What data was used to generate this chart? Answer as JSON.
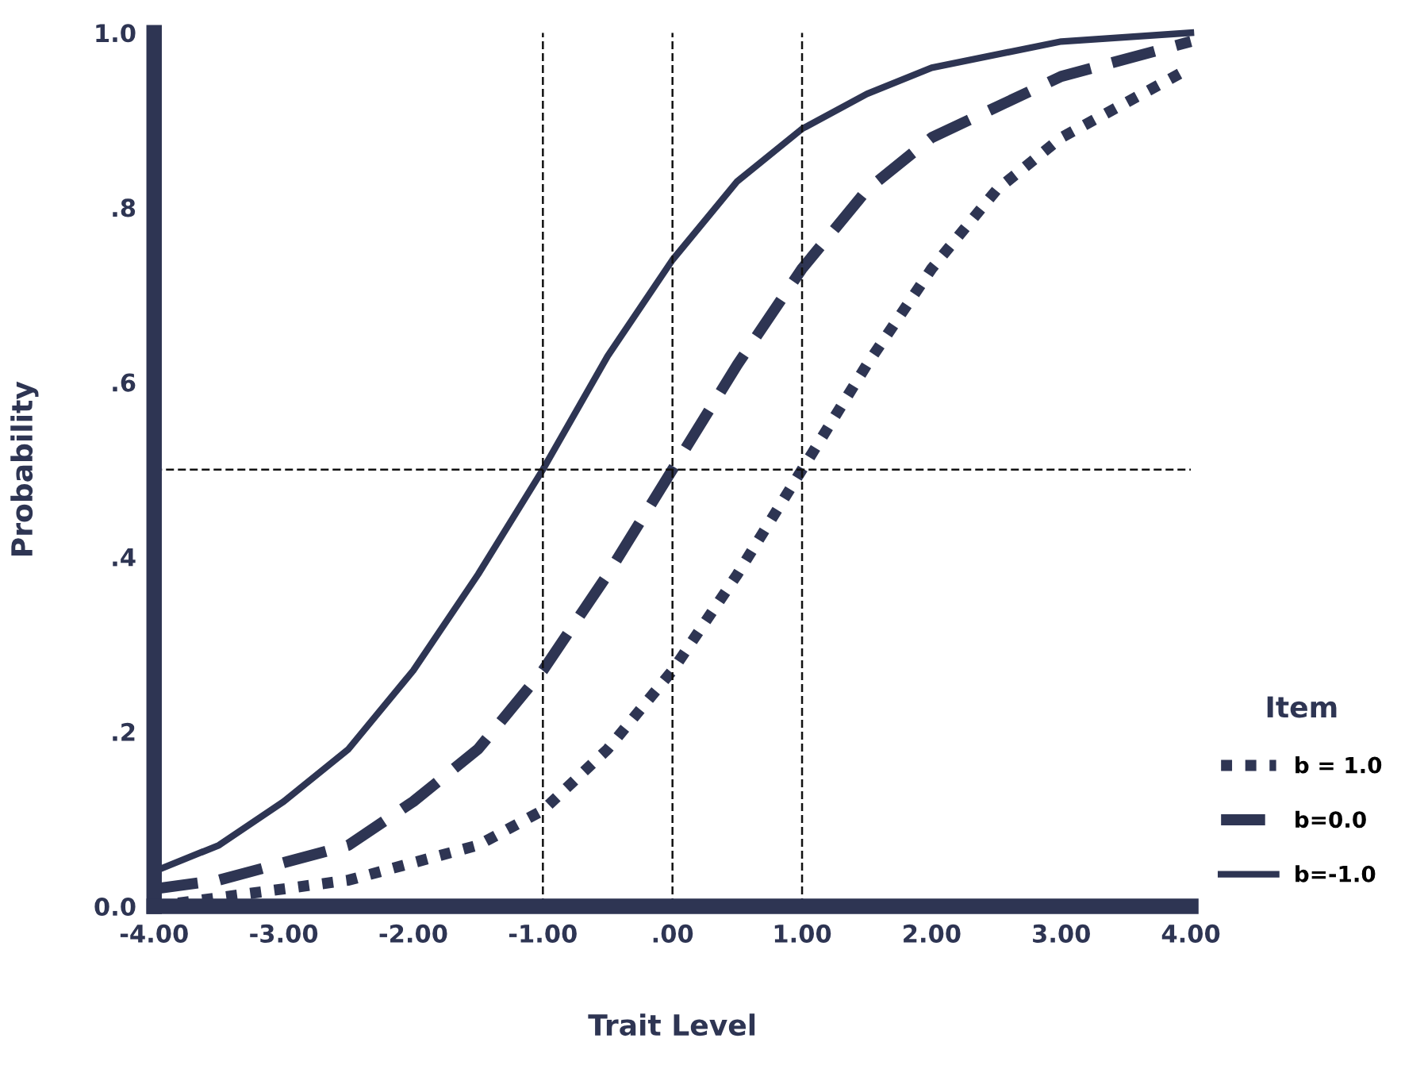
{
  "chart_data": {
    "type": "line",
    "xlabel": "Trait Level",
    "ylabel": "Probability",
    "legend_title": "Item",
    "xlim": [
      -4,
      4
    ],
    "xticks": [
      {
        "value": -4,
        "label": "-4.00"
      },
      {
        "value": -3,
        "label": "-3.00"
      },
      {
        "value": -2,
        "label": "-2.00"
      },
      {
        "value": -1,
        "label": "-1.00"
      },
      {
        "value": 0,
        "label": ".00"
      },
      {
        "value": 1,
        "label": "1.00"
      },
      {
        "value": 2,
        "label": "2.00"
      },
      {
        "value": 3,
        "label": "3.00"
      },
      {
        "value": 4,
        "label": "4.00"
      }
    ],
    "ylim": [
      0,
      1
    ],
    "yticks": [
      {
        "value": 0,
        "label": "0.0"
      },
      {
        "value": 0.2,
        "label": ".2"
      },
      {
        "value": 0.4,
        "label": ".4"
      },
      {
        "value": 0.6,
        "label": ".6"
      },
      {
        "value": 0.8,
        "label": ".8"
      },
      {
        "value": 1,
        "label": "1.0"
      }
    ],
    "grid": false,
    "legend": "right",
    "marker": "none",
    "ref_lines": [
      {
        "axis": "x",
        "value": -1,
        "line_style": "dashed",
        "color": "#111111"
      },
      {
        "axis": "x",
        "value": 0,
        "line_style": "dashed",
        "color": "#111111"
      },
      {
        "axis": "x",
        "value": 1,
        "line_style": "dashed",
        "color": "#111111"
      },
      {
        "axis": "y",
        "value": 0.5,
        "line_style": "dashed",
        "color": "#111111"
      }
    ],
    "series": [
      {
        "name": "b = 1.0",
        "color": "#2e3553",
        "line_style": "dotted",
        "x": [
          -4,
          -3.5,
          -3,
          -2.5,
          -2,
          -1.5,
          -1,
          -0.5,
          0,
          0.5,
          1,
          1.5,
          2,
          2.5,
          3,
          4
        ],
        "values": [
          0.0,
          0.01,
          0.02,
          0.03,
          0.05,
          0.07,
          0.11,
          0.18,
          0.27,
          0.38,
          0.5,
          0.62,
          0.73,
          0.82,
          0.88,
          0.96
        ]
      },
      {
        "name": "b=0.0",
        "color": "#2e3553",
        "line_style": "dashed",
        "x": [
          -4,
          -3.5,
          -3,
          -2.5,
          -2,
          -1.5,
          -1,
          -0.5,
          0,
          0.5,
          1,
          1.5,
          2,
          3,
          4
        ],
        "values": [
          0.02,
          0.03,
          0.05,
          0.07,
          0.12,
          0.18,
          0.27,
          0.38,
          0.5,
          0.62,
          0.73,
          0.82,
          0.88,
          0.95,
          0.99
        ]
      },
      {
        "name": "b=-1.0",
        "color": "#2e3553",
        "line_style": "solid",
        "x": [
          -4,
          -3.5,
          -3,
          -2.5,
          -2,
          -1.5,
          -1,
          -0.5,
          0,
          0.5,
          1,
          1.5,
          2,
          3,
          4
        ],
        "values": [
          0.04,
          0.07,
          0.12,
          0.18,
          0.27,
          0.38,
          0.5,
          0.63,
          0.74,
          0.83,
          0.89,
          0.93,
          0.96,
          0.99,
          1.0
        ]
      }
    ]
  }
}
